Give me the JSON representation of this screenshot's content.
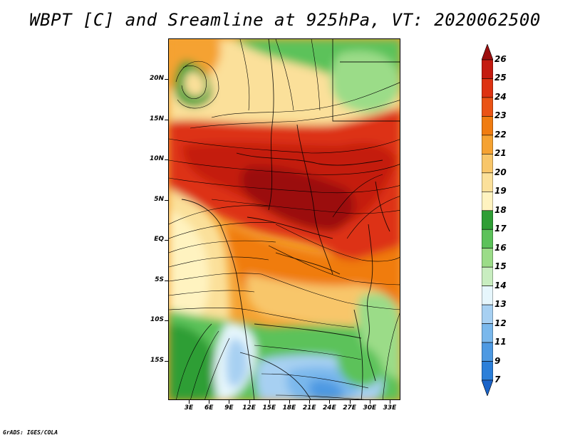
{
  "title": "WBPT [C] and Sreamline at 925hPa, VT: 2020062500",
  "credit": "GrADS: IGES/COLA",
  "y_axis": {
    "labels": [
      "20N",
      "15N",
      "10N",
      "5N",
      "EQ",
      "5S",
      "10S",
      "15S"
    ]
  },
  "x_axis": {
    "labels": [
      "3E",
      "6E",
      "9E",
      "12E",
      "15E",
      "18E",
      "21E",
      "24E",
      "27E",
      "30E",
      "33E"
    ]
  },
  "colorbar": {
    "labels": [
      "26",
      "25",
      "24",
      "23",
      "22",
      "21",
      "20",
      "19",
      "18",
      "17",
      "16",
      "15",
      "14",
      "13",
      "12",
      "11",
      "9",
      "7"
    ],
    "colors": [
      "#9b0e0e",
      "#c41b10",
      "#dd3212",
      "#ea5315",
      "#f07c10",
      "#f5a232",
      "#f8c66a",
      "#fbe09a",
      "#fff3c0",
      "#2f9e35",
      "#5cc25a",
      "#9bdc88",
      "#c8edc0",
      "#e6f6fc",
      "#a7d0f2",
      "#7ab8ec",
      "#4d99e2",
      "#2b7fd9",
      "#1a63c8"
    ]
  }
}
